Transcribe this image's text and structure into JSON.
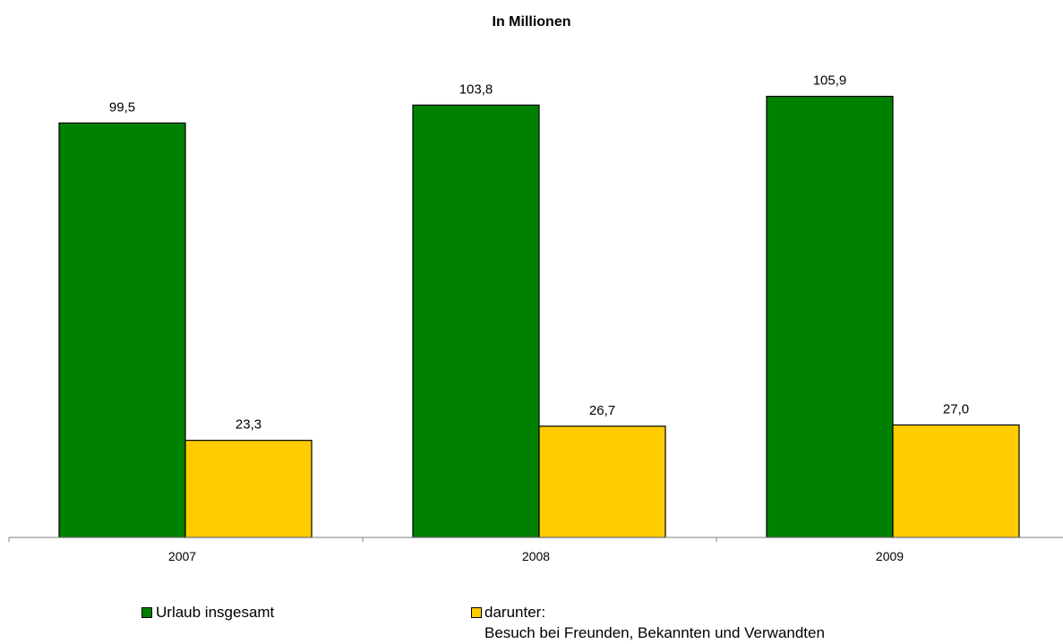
{
  "chart_data": {
    "type": "bar",
    "title": "In Millionen",
    "categories": [
      "2007",
      "2008",
      "2009"
    ],
    "series": [
      {
        "name": "Urlaub insgesamt",
        "values": [
          99.5,
          103.8,
          105.9
        ],
        "labels": [
          "99,5",
          "103,8",
          "105,9"
        ]
      },
      {
        "name": "darunter:",
        "name_line2": "Besuch bei Freunden, Bekannten und Verwandten",
        "values": [
          23.3,
          26.7,
          27.0
        ],
        "labels": [
          "23,3",
          "26,7",
          "27,0"
        ]
      }
    ],
    "colors": [
      "#008000",
      "#FFCC00"
    ],
    "xlabel": "",
    "ylabel": "",
    "ylim": [
      0,
      110
    ],
    "grid": false,
    "legend": "bottom"
  }
}
